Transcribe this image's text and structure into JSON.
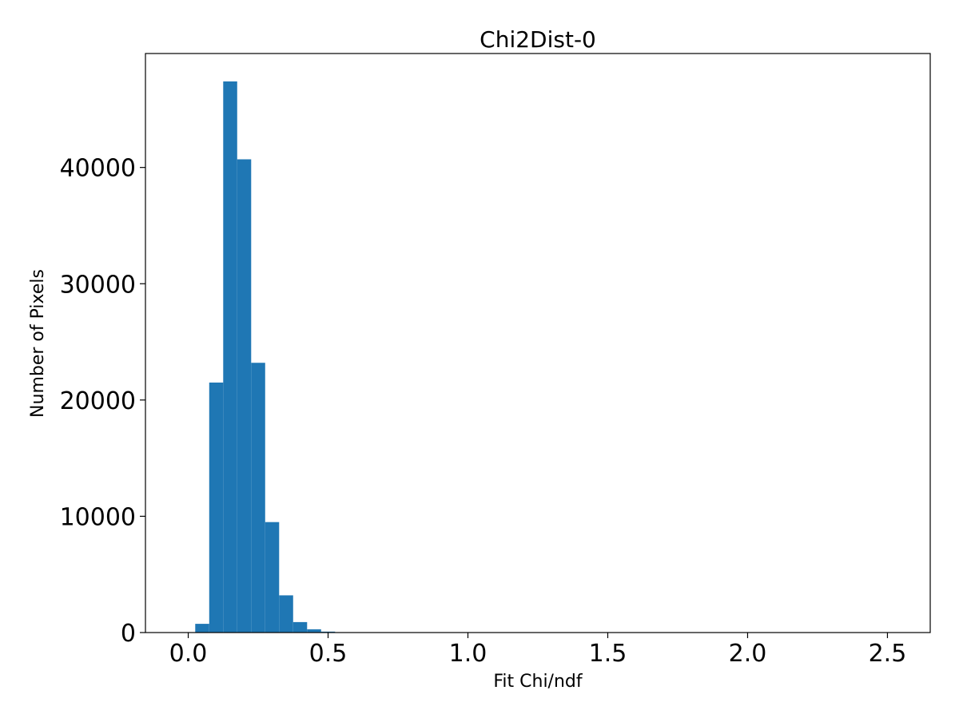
{
  "chart_data": {
    "type": "bar",
    "title": "Chi2Dist-0",
    "xlabel": "Fit Chi/ndf",
    "ylabel": "Number of Pixels",
    "bin_edges": [
      0.025,
      0.075,
      0.125,
      0.175,
      0.225,
      0.275,
      0.325,
      0.375,
      0.425,
      0.475,
      0.525
    ],
    "values": [
      750,
      21500,
      47400,
      40700,
      23200,
      9500,
      3200,
      900,
      280,
      80
    ],
    "xlim": [
      -0.153,
      2.653
    ],
    "ylim": [
      0,
      49800
    ],
    "xticks": [
      0.0,
      0.5,
      1.0,
      1.5,
      2.0,
      2.5
    ],
    "xtick_labels": [
      "0.0",
      "0.5",
      "1.0",
      "1.5",
      "2.0",
      "2.5"
    ],
    "yticks": [
      0,
      10000,
      20000,
      30000,
      40000
    ],
    "ytick_labels": [
      "0",
      "10000",
      "20000",
      "30000",
      "40000"
    ],
    "grid": false,
    "bar_color": "#1f77b4"
  }
}
